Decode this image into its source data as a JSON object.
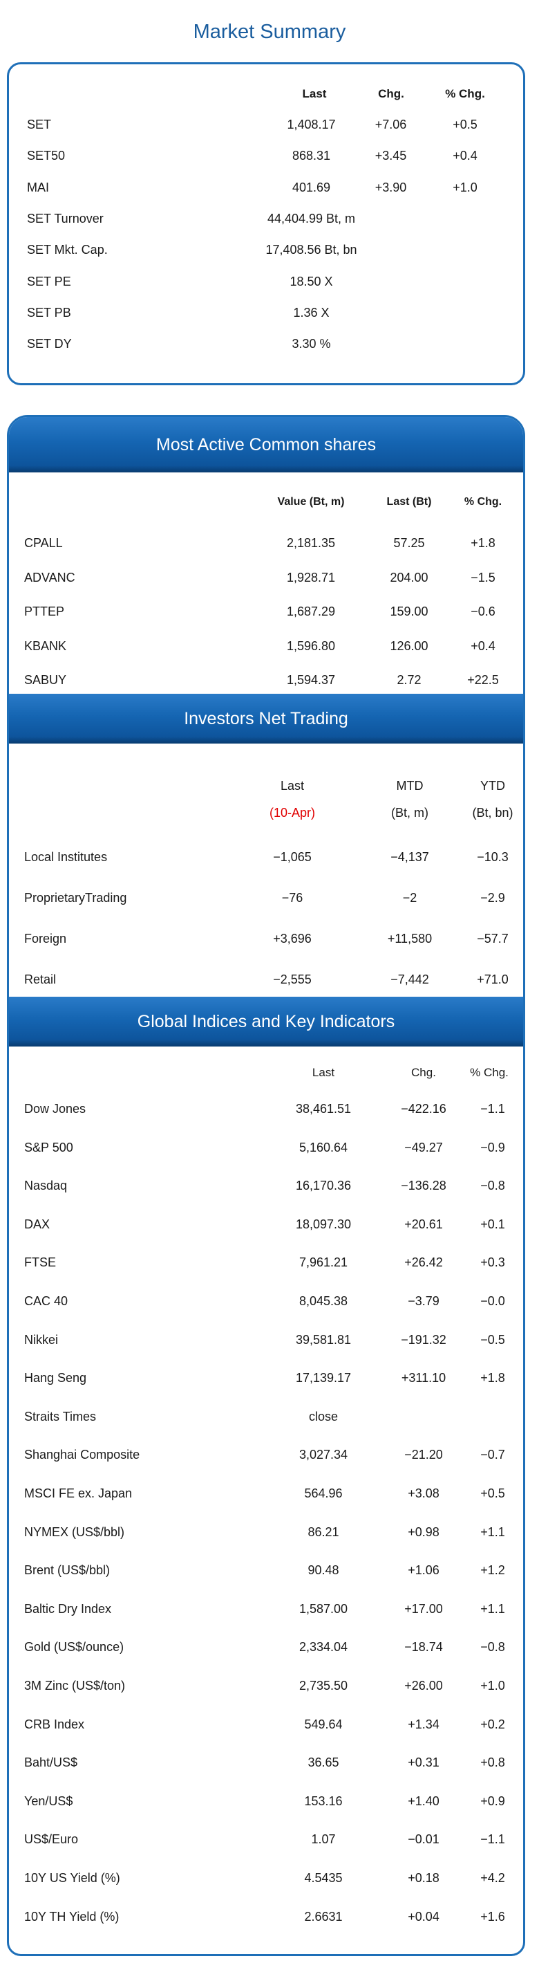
{
  "market_summary": {
    "title": "Market Summary",
    "headers": [
      "Last",
      "Chg.",
      "% Chg."
    ],
    "rows": [
      {
        "name": "SET",
        "last": "1,408.17",
        "chg": "+7.06",
        "pct": "+0.5"
      },
      {
        "name": "SET50",
        "last": "868.31",
        "chg": "+3.45",
        "pct": "+0.4"
      },
      {
        "name": "MAI",
        "last": "401.69",
        "chg": "+3.90",
        "pct": "+1.0"
      },
      {
        "name": "SET Turnover",
        "last": "44,404.99 Bt, m",
        "chg": "",
        "pct": ""
      },
      {
        "name": "SET Mkt. Cap.",
        "last": "17,408.56 Bt, bn",
        "chg": "",
        "pct": ""
      },
      {
        "name": "SET PE",
        "last": "18.50 X",
        "chg": "",
        "pct": ""
      },
      {
        "name": "SET PB",
        "last": "1.36 X",
        "chg": "",
        "pct": ""
      },
      {
        "name": "SET DY",
        "last": "3.30 %",
        "chg": "",
        "pct": ""
      }
    ]
  },
  "most_active": {
    "title": "Most Active Common shares",
    "headers": [
      "Value (Bt, m)",
      "Last (Bt)",
      "% Chg."
    ],
    "rows": [
      {
        "name": "CPALL",
        "value": "2,181.35",
        "last": "57.25",
        "pct": "+1.8"
      },
      {
        "name": "ADVANC",
        "value": "1,928.71",
        "last": "204.00",
        "pct": "-1.5"
      },
      {
        "name": "PTTEP",
        "value": "1,687.29",
        "last": "159.00",
        "pct": "-0.6"
      },
      {
        "name": "KBANK",
        "value": "1,596.80",
        "last": "126.00",
        "pct": "+0.4"
      },
      {
        "name": "SABUY",
        "value": "1,594.37",
        "last": "2.72",
        "pct": "+22.5"
      }
    ]
  },
  "investors": {
    "title": "Investors Net Trading",
    "headers": [
      "Last",
      "MTD",
      "YTD"
    ],
    "subheaders": [
      "(10-Apr)",
      "(Bt, m)",
      "(Bt, bn)"
    ],
    "highlight_color": "#e00000",
    "rows": [
      {
        "name": "Local Institutes",
        "last": "-1,065",
        "mtd": "-4,137",
        "ytd": "-10.3"
      },
      {
        "name": "ProprietaryTrading",
        "last": "-76",
        "mtd": "-2",
        "ytd": "-2.9"
      },
      {
        "name": "Foreign",
        "last": "+3,696",
        "mtd": "+11,580",
        "ytd": "-57.7"
      },
      {
        "name": "Retail",
        "last": "-2,555",
        "mtd": "-7,442",
        "ytd": "+71.0"
      }
    ]
  },
  "global": {
    "title": "Global Indices and Key Indicators",
    "headers": [
      "Last",
      "Chg.",
      "% Chg."
    ],
    "rows": [
      {
        "name": "Dow Jones",
        "last": "38,461.51",
        "chg": "-422.16",
        "pct": "-1.1"
      },
      {
        "name": "S&P 500",
        "last": "5,160.64",
        "chg": "-49.27",
        "pct": "-0.9"
      },
      {
        "name": "Nasdaq",
        "last": "16,170.36",
        "chg": "-136.28",
        "pct": "-0.8"
      },
      {
        "name": "DAX",
        "last": "18,097.30",
        "chg": "+20.61",
        "pct": "+0.1"
      },
      {
        "name": "FTSE",
        "last": "7,961.21",
        "chg": "+26.42",
        "pct": "+0.3"
      },
      {
        "name": "CAC 40",
        "last": "8,045.38",
        "chg": "-3.79",
        "pct": "-0.0"
      },
      {
        "name": "Nikkei",
        "last": "39,581.81",
        "chg": "-191.32",
        "pct": "-0.5"
      },
      {
        "name": "Hang Seng",
        "last": "17,139.17",
        "chg": "+311.10",
        "pct": "+1.8"
      },
      {
        "name": "Straits Times",
        "last": "close",
        "chg": "",
        "pct": ""
      },
      {
        "name": "Shanghai Composite",
        "last": "3,027.34",
        "chg": "-21.20",
        "pct": "-0.7"
      },
      {
        "name": "MSCI FE ex. Japan",
        "last": "564.96",
        "chg": "+3.08",
        "pct": "+0.5"
      },
      {
        "name": "NYMEX (US$/bbl)",
        "last": "86.21",
        "chg": "+0.98",
        "pct": "+1.1"
      },
      {
        "name": "Brent (US$/bbl)",
        "last": "90.48",
        "chg": "+1.06",
        "pct": "+1.2"
      },
      {
        "name": "Baltic Dry Index",
        "last": "1,587.00",
        "chg": "+17.00",
        "pct": "+1.1"
      },
      {
        "name": "Gold (US$/ounce)",
        "last": "2,334.04",
        "chg": "-18.74",
        "pct": "-0.8"
      },
      {
        "name": "3M Zinc (US$/ton)",
        "last": "2,735.50",
        "chg": "+26.00",
        "pct": "+1.0"
      },
      {
        "name": "CRB Index",
        "last": "549.64",
        "chg": "+1.34",
        "pct": "+0.2"
      },
      {
        "name": "Baht/US$",
        "last": "36.65",
        "chg": "+0.31",
        "pct": "+0.8"
      },
      {
        "name": "Yen/US$",
        "last": "153.16",
        "chg": "+1.40",
        "pct": "+0.9"
      },
      {
        "name": "US$/Euro",
        "last": "1.07",
        "chg": "-0.01",
        "pct": "-1.1"
      },
      {
        "name": "10Y US Yield (%)",
        "last": "4.5435",
        "chg": "+0.18",
        "pct": "+4.2"
      },
      {
        "name": "10Y TH Yield (%)",
        "last": "2.6631",
        "chg": "+0.04",
        "pct": "+1.6"
      }
    ]
  }
}
